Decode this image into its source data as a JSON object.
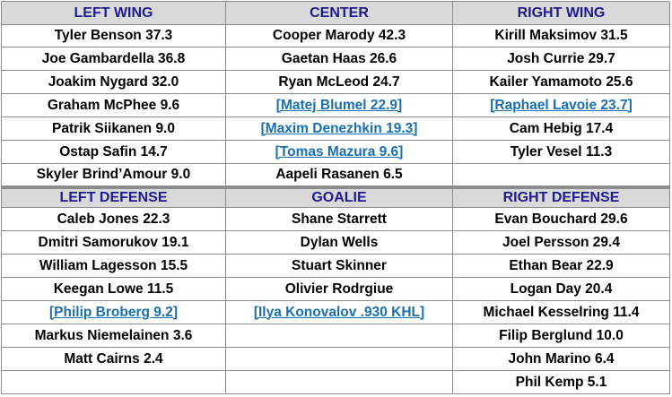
{
  "colors": {
    "header_bg": "#d9d9d9",
    "header_text": "#1f1a8f",
    "link": "#1a6fb3",
    "grid_line": "#8c8c8c"
  },
  "forwards": {
    "headers": [
      "LEFT WING",
      "CENTER",
      "RIGHT WING"
    ],
    "rows": [
      [
        {
          "text": "Tyler Benson 37.3"
        },
        {
          "text": "Cooper Marody 42.3"
        },
        {
          "text": "Kirill Maksimov 31.5"
        }
      ],
      [
        {
          "text": "Joe Gambardella 36.8"
        },
        {
          "text": "Gaetan Haas 26.6"
        },
        {
          "text": "Josh Currie 29.7"
        }
      ],
      [
        {
          "text": "Joakim Nygard 32.0"
        },
        {
          "text": "Ryan McLeod 24.7"
        },
        {
          "text": "Kailer Yamamoto 25.6"
        }
      ],
      [
        {
          "text": "Graham McPhee 9.6"
        },
        {
          "text": "[Matej Blumel 22.9]",
          "link": true
        },
        {
          "text": "[Raphael Lavoie 23.7]",
          "link": true
        }
      ],
      [
        {
          "text": "Patrik Siikanen 9.0"
        },
        {
          "text": "[Maxim Denezhkin 19.3]",
          "link": true
        },
        {
          "text": "Cam Hebig 17.4"
        }
      ],
      [
        {
          "text": "Ostap Safin 14.7"
        },
        {
          "text": "[Tomas Mazura 9.6]",
          "link": true
        },
        {
          "text": "Tyler Vesel 11.3"
        }
      ],
      [
        {
          "text": "Skyler Brind’Amour 9.0"
        },
        {
          "text": "Aapeli Rasanen 6.5"
        },
        {
          "text": ""
        }
      ]
    ]
  },
  "defense": {
    "headers": [
      "LEFT DEFENSE",
      "GOALIE",
      "RIGHT DEFENSE"
    ],
    "rows": [
      [
        {
          "text": "Caleb Jones 22.3"
        },
        {
          "text": "Shane Starrett"
        },
        {
          "text": "Evan Bouchard 29.6"
        }
      ],
      [
        {
          "text": "Dmitri Samorukov 19.1"
        },
        {
          "text": "Dylan Wells"
        },
        {
          "text": "Joel Persson 29.4"
        }
      ],
      [
        {
          "text": "William Lagesson 15.5"
        },
        {
          "text": "Stuart Skinner"
        },
        {
          "text": "Ethan Bear 22.9"
        }
      ],
      [
        {
          "text": "Keegan Lowe 11.5"
        },
        {
          "text": "Olivier Rodrgiue"
        },
        {
          "text": "Logan Day 20.4"
        }
      ],
      [
        {
          "text": "[Philip Broberg 9.2]",
          "link": true
        },
        {
          "text": "[Ilya Konovalov .930 KHL]",
          "link": true
        },
        {
          "text": "Michael Kesselring 11.4"
        }
      ],
      [
        {
          "text": "Markus Niemelainen 3.6"
        },
        {
          "text": ""
        },
        {
          "text": "Filip Berglund 10.0"
        }
      ],
      [
        {
          "text": "Matt Cairns 2.4"
        },
        {
          "text": ""
        },
        {
          "text": "John Marino 6.4"
        }
      ],
      [
        {
          "text": ""
        },
        {
          "text": ""
        },
        {
          "text": "Phil Kemp 5.1"
        }
      ]
    ]
  }
}
